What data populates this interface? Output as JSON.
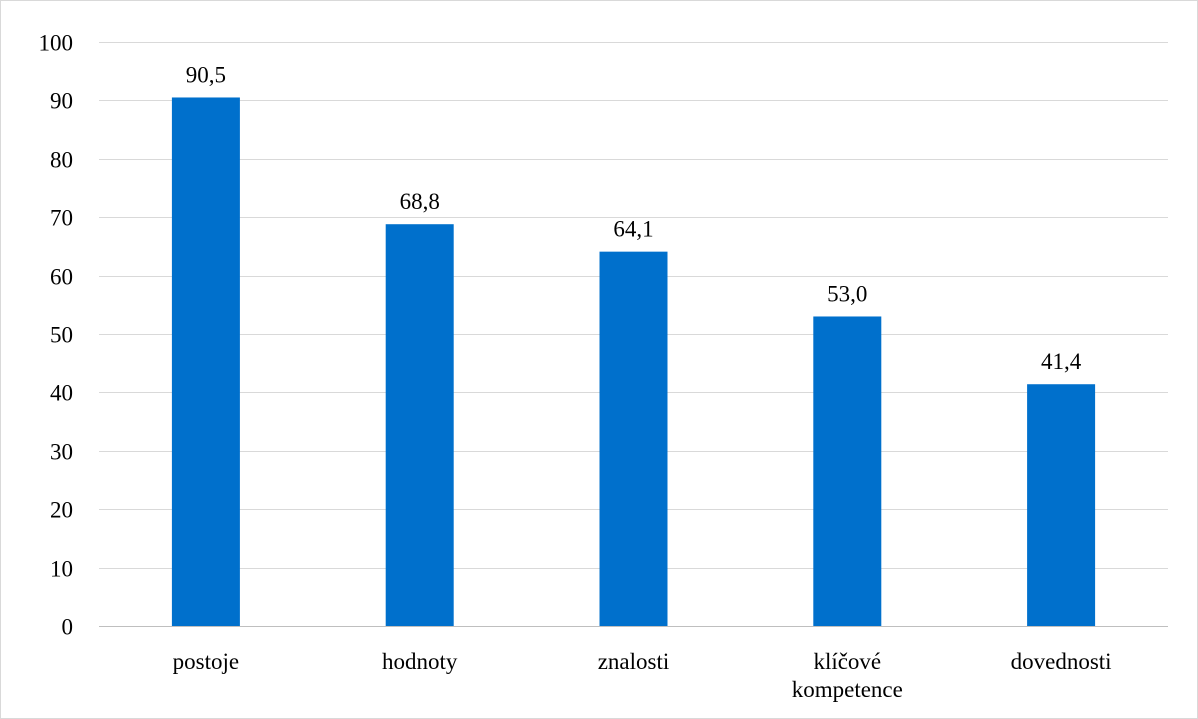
{
  "chart_data": {
    "type": "bar",
    "categories": [
      [
        "postoje"
      ],
      [
        "hodnoty"
      ],
      [
        "znalosti"
      ],
      [
        "klíčové",
        "kompetence"
      ],
      [
        "dovednosti"
      ]
    ],
    "values": [
      90.5,
      68.8,
      64.1,
      53.0,
      41.4
    ],
    "data_labels": [
      "90,5",
      "68,8",
      "64,1",
      "53,0",
      "41,4"
    ],
    "ylim": [
      0,
      100
    ],
    "yticks": [
      0,
      10,
      20,
      30,
      40,
      50,
      60,
      70,
      80,
      90,
      100
    ],
    "title": "",
    "xlabel": "",
    "ylabel": "",
    "grid": true,
    "legend": "none",
    "colors": {
      "bar": "#0070CC"
    }
  }
}
